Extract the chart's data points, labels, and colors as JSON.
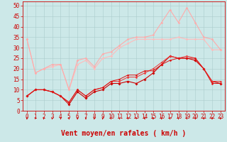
{
  "background_color": "#cce8e8",
  "grid_color": "#aacccc",
  "xlabel": "Vent moyen/en rafales ( km/h )",
  "xlabel_color": "#cc0000",
  "xlabel_fontsize": 7,
  "tick_color": "#cc0000",
  "tick_fontsize": 5.5,
  "ylim": [
    0,
    52
  ],
  "xlim": [
    -0.5,
    23.5
  ],
  "yticks": [
    0,
    5,
    10,
    15,
    20,
    25,
    30,
    35,
    40,
    45,
    50
  ],
  "xticks": [
    0,
    1,
    2,
    3,
    4,
    5,
    6,
    7,
    8,
    9,
    10,
    11,
    12,
    13,
    14,
    15,
    16,
    17,
    18,
    19,
    20,
    21,
    22,
    23
  ],
  "series": [
    {
      "x": [
        0,
        1,
        2,
        3,
        4,
        5,
        6,
        7,
        8,
        9,
        10,
        11,
        12,
        13,
        14,
        15,
        16,
        17,
        18,
        19,
        20,
        21,
        22,
        23
      ],
      "y": [
        7,
        10,
        10,
        9,
        7,
        3,
        9,
        6,
        9,
        10,
        13,
        13,
        14,
        13,
        15,
        18,
        22,
        26,
        25,
        25,
        24,
        20,
        14,
        13
      ],
      "color": "#cc0000",
      "linewidth": 0.8,
      "marker": "D",
      "markersize": 1.8
    },
    {
      "x": [
        0,
        1,
        2,
        3,
        4,
        5,
        6,
        7,
        8,
        9,
        10,
        11,
        12,
        13,
        14,
        15,
        16,
        17,
        18,
        19,
        20,
        21,
        22,
        23
      ],
      "y": [
        7,
        10,
        10,
        9,
        7,
        4,
        10,
        7,
        10,
        11,
        14,
        14,
        16,
        16,
        18,
        20,
        23,
        26,
        25,
        26,
        25,
        20,
        14,
        14
      ],
      "color": "#ee3333",
      "linewidth": 0.7,
      "marker": "D",
      "markersize": 1.5
    },
    {
      "x": [
        0,
        1,
        2,
        3,
        4,
        5,
        6,
        7,
        8,
        9,
        10,
        11,
        12,
        13,
        14,
        15,
        16,
        17,
        18,
        19,
        20,
        21,
        22,
        23
      ],
      "y": [
        7,
        10,
        10,
        9,
        7,
        4,
        10,
        7,
        10,
        11,
        14,
        15,
        17,
        17,
        19,
        19,
        22,
        24,
        25,
        25,
        25,
        20,
        13,
        13
      ],
      "color": "#dd1111",
      "linewidth": 0.7,
      "marker": "D",
      "markersize": 1.4
    },
    {
      "x": [
        0,
        1,
        2,
        3,
        4,
        5,
        6,
        7,
        8,
        9,
        10,
        11,
        12,
        13,
        14,
        15,
        16,
        17,
        18,
        19,
        20,
        21,
        22,
        23
      ],
      "y": [
        34,
        18,
        20,
        21,
        22,
        10,
        22,
        24,
        20,
        25,
        26,
        30,
        32,
        34,
        34,
        34,
        34,
        34,
        35,
        34,
        34,
        34,
        29,
        29
      ],
      "color": "#ffbbbb",
      "linewidth": 0.8,
      "marker": "D",
      "markersize": 1.5
    },
    {
      "x": [
        0,
        1,
        2,
        3,
        4,
        5,
        6,
        7,
        8,
        9,
        10,
        11,
        12,
        13,
        14,
        15,
        16,
        17,
        18,
        19,
        20,
        21,
        22,
        23
      ],
      "y": [
        34,
        18,
        20,
        22,
        22,
        10,
        24,
        25,
        21,
        27,
        28,
        31,
        34,
        35,
        35,
        36,
        42,
        48,
        42,
        49,
        42,
        35,
        34,
        29
      ],
      "color": "#ffaaaa",
      "linewidth": 0.8,
      "marker": "D",
      "markersize": 1.5
    }
  ]
}
